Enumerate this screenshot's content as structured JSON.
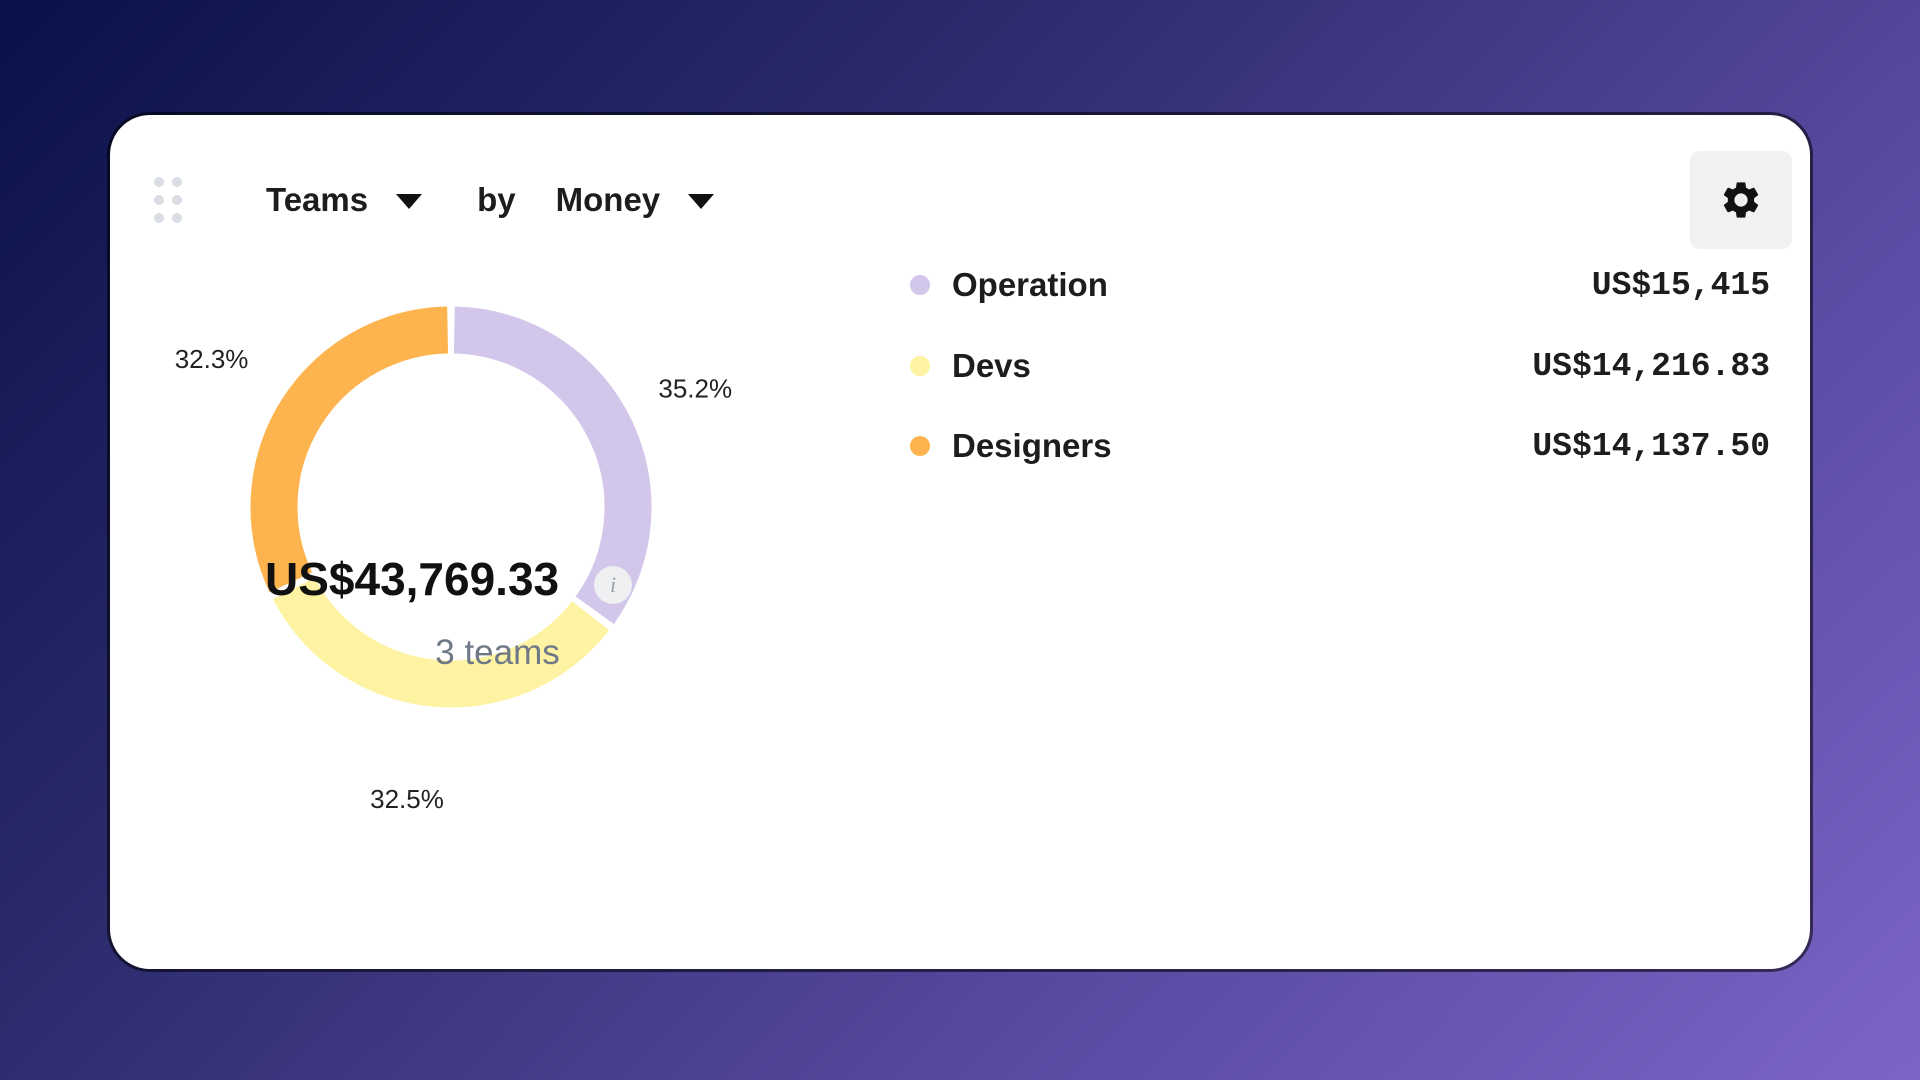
{
  "toolbar": {
    "group_label": "Teams",
    "by_label": "by",
    "metric_label": "Money"
  },
  "summary": {
    "total": "US$43,769.33",
    "info_glyph": "i",
    "subtitle": "3 teams"
  },
  "chart_data": {
    "type": "pie",
    "donut": true,
    "categories": [
      "Operation",
      "Devs",
      "Designers"
    ],
    "values": [
      15415,
      14216.83,
      14137.5
    ],
    "percent_labels": [
      "35.2%",
      "32.5%",
      "32.3%"
    ],
    "colors": [
      "#d2c6ea",
      "#fdf3a3",
      "#fdb44f"
    ]
  },
  "legend": [
    {
      "name": "Operation",
      "value": "US$15,415",
      "color": "#d2c6ea"
    },
    {
      "name": "Devs",
      "value": "US$14,216.83",
      "color": "#fdf3a3"
    },
    {
      "name": "Designers",
      "value": "US$14,137.50",
      "color": "#fdb44f"
    }
  ],
  "icons": {
    "drag": "drag-handle-icon",
    "gear": "gear-icon",
    "info": "info-icon",
    "caret": "caret-down-icon"
  }
}
